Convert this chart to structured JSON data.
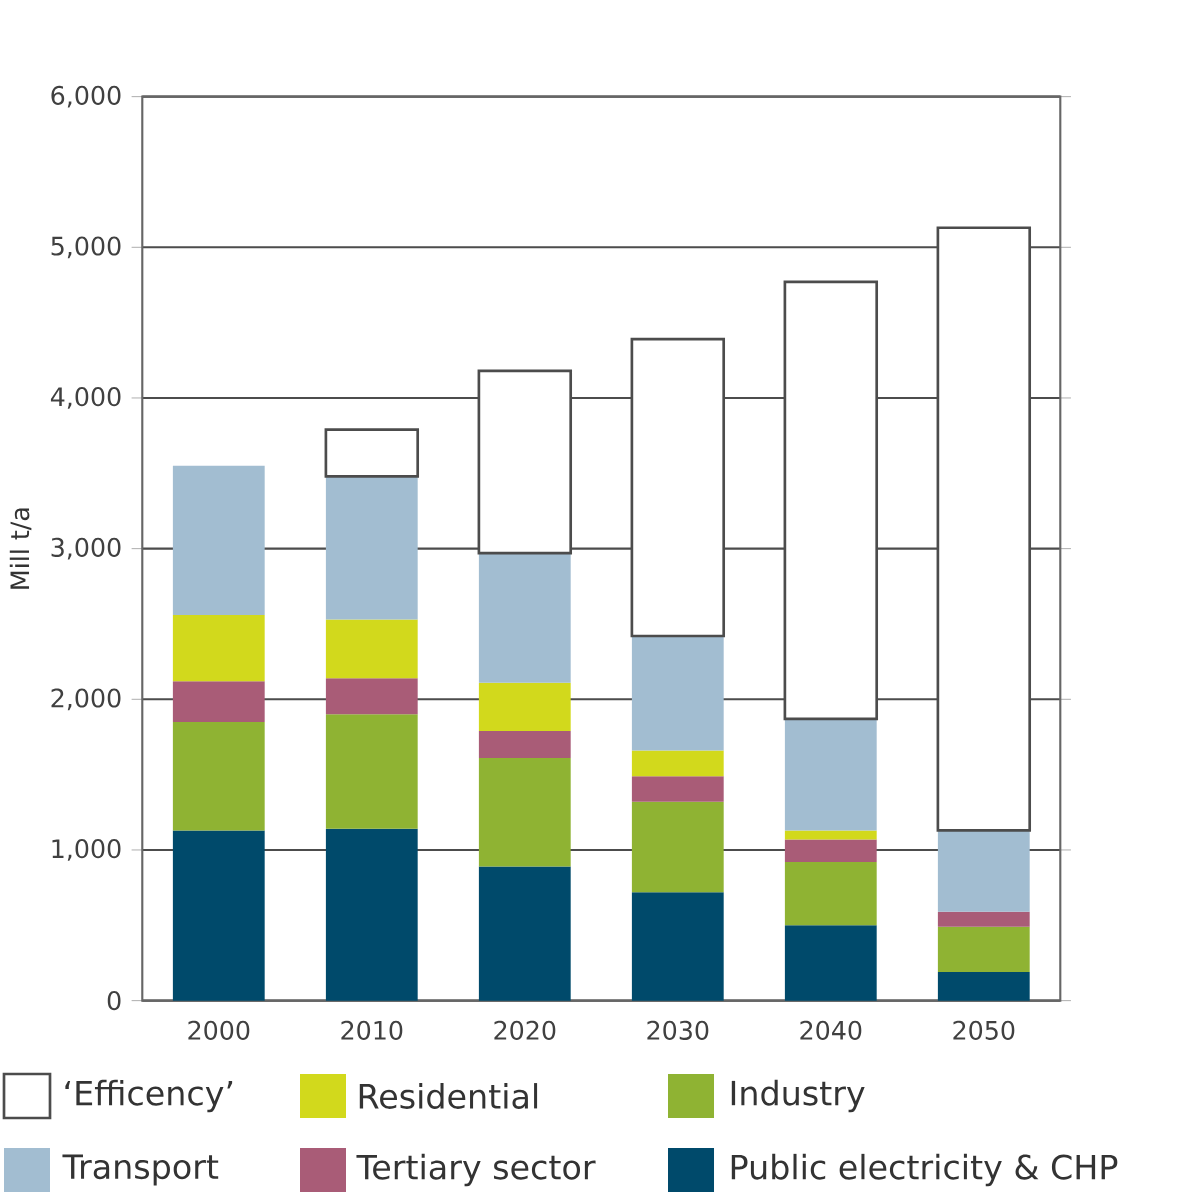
{
  "chart_data": {
    "type": "bar",
    "stacked": true,
    "ylabel": "Mill t/a",
    "categories": [
      "2000",
      "2010",
      "2020",
      "2030",
      "2040",
      "2050"
    ],
    "series": [
      {
        "name": "Public electricity & CHP",
        "color": "#004a6b",
        "values": [
          1130,
          1140,
          890,
          720,
          500,
          190
        ]
      },
      {
        "name": "Industry",
        "color": "#8fb333",
        "values": [
          720,
          760,
          720,
          600,
          420,
          300
        ]
      },
      {
        "name": "Tertiary sector",
        "color": "#a95c77",
        "values": [
          270,
          240,
          180,
          170,
          150,
          100
        ]
      },
      {
        "name": "Residential",
        "color": "#d2d91c",
        "values": [
          440,
          390,
          320,
          170,
          60,
          0
        ]
      },
      {
        "name": "Transport",
        "color": "#a2bdd1",
        "values": [
          990,
          950,
          860,
          760,
          740,
          540
        ]
      },
      {
        "name": "‘Efficency’",
        "color": "#ffffff",
        "values": [
          null,
          310,
          1210,
          1970,
          2900,
          4000
        ]
      }
    ],
    "ylim": [
      0,
      6000
    ],
    "yticks": [
      0,
      {
        "value": 1000,
        "label": "1,000"
      },
      {
        "value": 2000,
        "label": "2,000"
      },
      {
        "value": 3000,
        "label": "3,000"
      },
      {
        "value": 4000,
        "label": "4,000"
      },
      {
        "value": 5000,
        "label": "5,000"
      },
      {
        "value": 6000,
        "label": "6,000"
      }
    ],
    "grid": "y",
    "legend": "bottom"
  }
}
